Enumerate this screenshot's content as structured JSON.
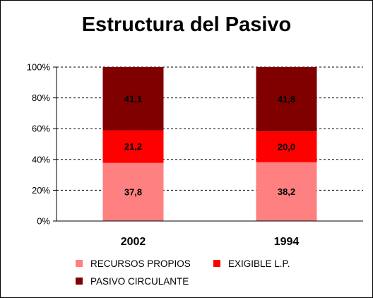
{
  "chart_data": {
    "type": "bar",
    "stacked": true,
    "normalized_percent": true,
    "title": "Estructura del Pasivo",
    "categories": [
      "2002",
      "1994"
    ],
    "series": [
      {
        "name": "RECURSOS PROPIOS",
        "values": [
          37.8,
          38.2
        ],
        "labels": [
          "37,8",
          "38,2"
        ],
        "color": "#ff8080"
      },
      {
        "name": "EXIGIBLE L.P.",
        "values": [
          21.2,
          20.0
        ],
        "labels": [
          "21,2",
          "20,0"
        ],
        "color": "#ff0000"
      },
      {
        "name": "PASIVO CIRCULANTE",
        "values": [
          41.1,
          41.8
        ],
        "labels": [
          "41,1",
          "41,8"
        ],
        "color": "#800000"
      }
    ],
    "yticks": [
      "0%",
      "20%",
      "40%",
      "60%",
      "80%",
      "100%"
    ],
    "ylim": [
      0,
      100
    ],
    "grid": true,
    "legend_position": "bottom"
  }
}
